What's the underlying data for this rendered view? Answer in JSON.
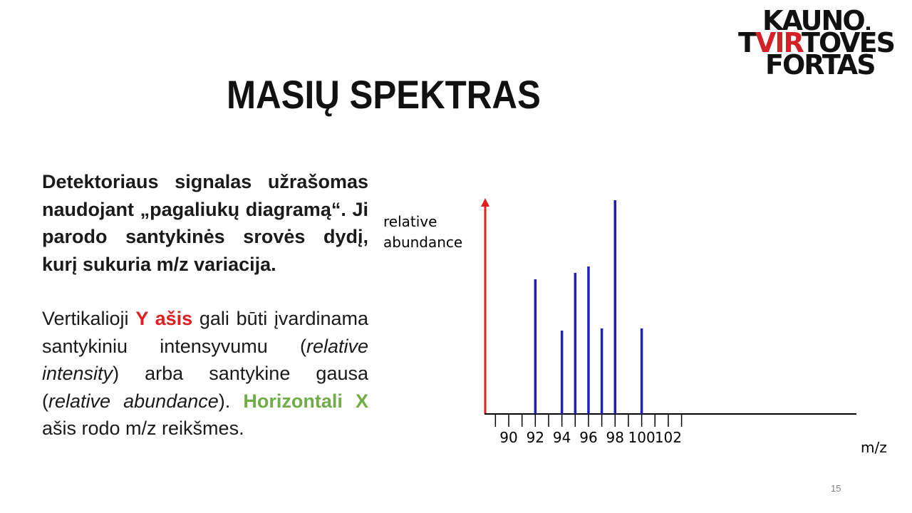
{
  "logo": {
    "line1": "KAUNO",
    "line2_prefix": "T",
    "line2_accent": "VIR",
    "line2_suffix": "TOVĖS",
    "line3": "FORTAS",
    "accent_color": "#d42027"
  },
  "title": "MASIŲ SPEKTRAS",
  "paragraph1": "Detektoriaus signalas užrašomas naudojant „pagaliukų diagramą“. Ji parodo santykinės srovės dydį, kurį sukuria m/z variacija.",
  "paragraph2": {
    "t1": "Vertikalioji",
    "y_axis": "Y ašis",
    "t2": "gali būti įvardinama santykiniu intensyvumu (",
    "i1": "relative intensity",
    "t3": ") arba santykine gausa (",
    "i2": "relative abundance",
    "t4": ").",
    "x_axis": "Horizontali X",
    "t5": "ašis rodo m/z reikšmes."
  },
  "page_number": "15",
  "colors": {
    "y_axis_red": "#e02020",
    "x_axis_green": "#70ad47",
    "bar_blue": "#1f1fc0"
  },
  "chart_data": {
    "type": "bar",
    "ylabel_line1": "relative",
    "ylabel_line2": "abundance",
    "xlabel": "m/z",
    "x_ticks": [
      90,
      92,
      94,
      96,
      98,
      100,
      102
    ],
    "xlim": [
      88.5,
      103.5
    ],
    "ylim": [
      0,
      100
    ],
    "grid": false,
    "points": [
      {
        "x": 92,
        "y": 63
      },
      {
        "x": 94,
        "y": 39
      },
      {
        "x": 95,
        "y": 66
      },
      {
        "x": 96,
        "y": 69
      },
      {
        "x": 97,
        "y": 40
      },
      {
        "x": 98,
        "y": 100
      },
      {
        "x": 100,
        "y": 40
      }
    ]
  }
}
